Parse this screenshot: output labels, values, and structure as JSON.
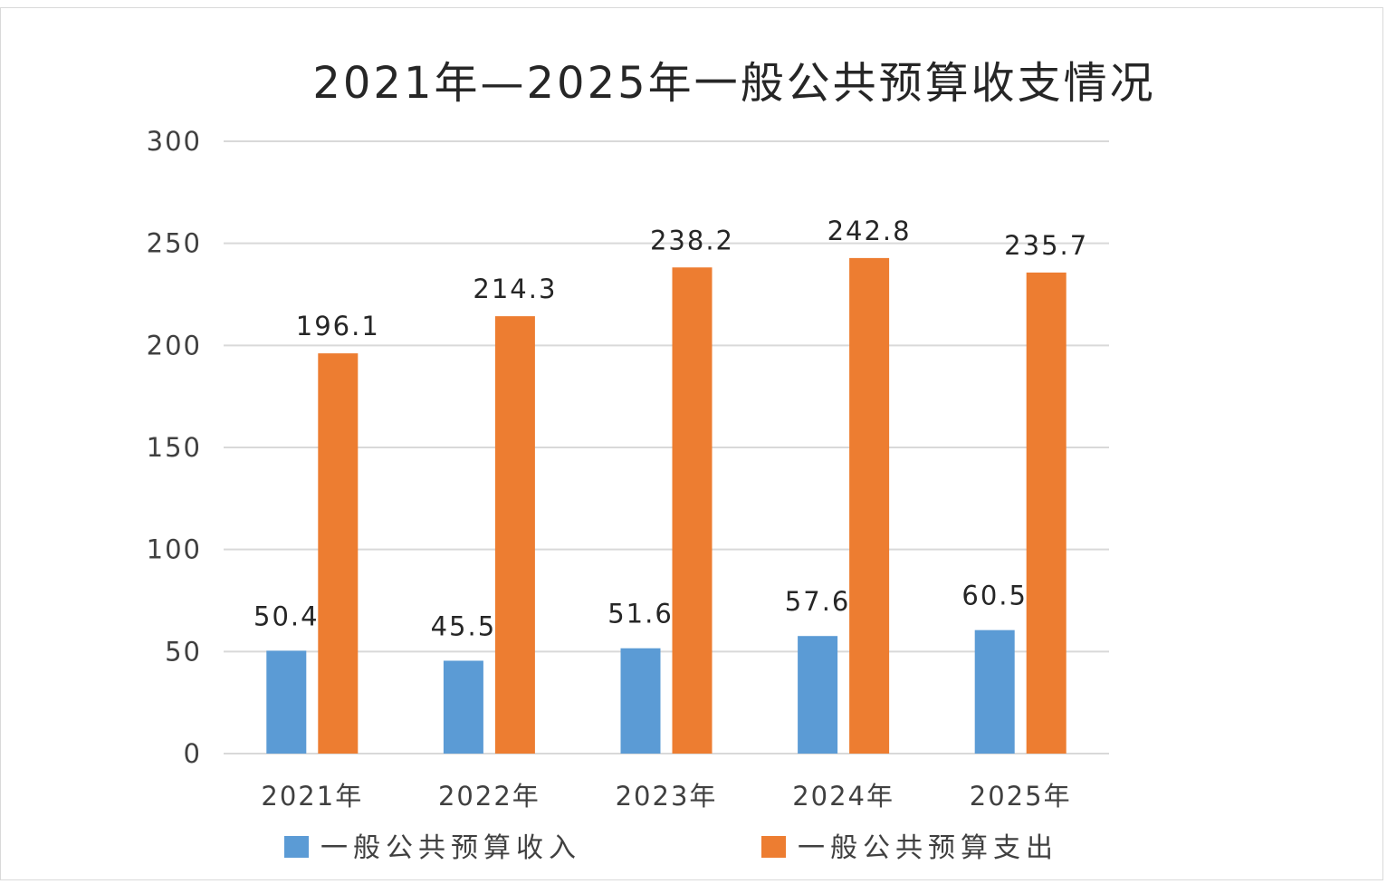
{
  "chart_data": {
    "type": "bar",
    "title": "2021年—2025年一般公共预算收支情况",
    "categories": [
      "2021年",
      "2022年",
      "2023年",
      "2024年",
      "2025年"
    ],
    "series": [
      {
        "name": "一般公共预算收入",
        "values": [
          50.4,
          45.5,
          51.6,
          57.6,
          60.5
        ],
        "labels": [
          "50.4",
          "45.5",
          "51.6",
          "57.6",
          "60.5"
        ],
        "color": "#5b9bd5"
      },
      {
        "name": "一般公共预算支出",
        "values": [
          196.1,
          214.3,
          238.2,
          242.8,
          235.7
        ],
        "labels": [
          "196.1",
          "214.3",
          "238.2",
          "242.8",
          "235.7"
        ],
        "color": "#ed7d31"
      }
    ],
    "ylim": [
      0,
      300
    ],
    "yticks": [
      0,
      50,
      100,
      150,
      200,
      250,
      300
    ],
    "ytick_labels": [
      "0",
      "50",
      "100",
      "150",
      "200",
      "250",
      "300"
    ],
    "xlabel": "",
    "ylabel": "",
    "grid": true,
    "legend_position": "bottom"
  }
}
